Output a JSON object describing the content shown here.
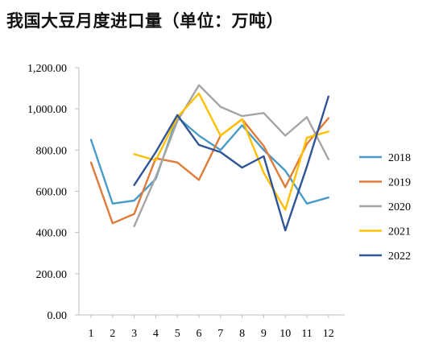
{
  "chart_data": {
    "type": "line",
    "title": "我国大豆月度进口量（单位：万吨）",
    "xlabel": "",
    "ylabel": "",
    "x": [
      1,
      2,
      3,
      4,
      5,
      6,
      7,
      8,
      9,
      10,
      11,
      12
    ],
    "x_tick_labels": [
      "1",
      "2",
      "3",
      "4",
      "5",
      "6",
      "7",
      "8",
      "9",
      "10",
      "11",
      "12"
    ],
    "ylim": [
      0,
      1200
    ],
    "y_ticks": [
      0,
      200,
      400,
      600,
      800,
      1000,
      1200
    ],
    "y_tick_labels": [
      "0.00",
      "200.00",
      "400.00",
      "600.00",
      "800.00",
      "1,000.00",
      "1,200.00"
    ],
    "grid": false,
    "legend_position": "right",
    "series": [
      {
        "name": "2018",
        "color": "#4a9cc8",
        "values": [
          850,
          540,
          555,
          660,
          960,
          870,
          800,
          920,
          800,
          700,
          540,
          570
        ]
      },
      {
        "name": "2019",
        "color": "#e07b39",
        "values": [
          740,
          445,
          490,
          760,
          740,
          655,
          870,
          950,
          820,
          620,
          830,
          955
        ]
      },
      {
        "name": "2020",
        "color": "#a5a5a5",
        "values": [
          null,
          null,
          430,
          670,
          940,
          1115,
          1010,
          965,
          980,
          870,
          960,
          755
        ]
      },
      {
        "name": "2021",
        "color": "#ffc000",
        "values": [
          null,
          null,
          780,
          750,
          960,
          1075,
          870,
          950,
          690,
          510,
          860,
          890
        ]
      },
      {
        "name": "2022",
        "color": "#2f5597",
        "values": [
          null,
          null,
          630,
          790,
          970,
          825,
          790,
          715,
          770,
          410,
          720,
          1060
        ]
      }
    ]
  }
}
